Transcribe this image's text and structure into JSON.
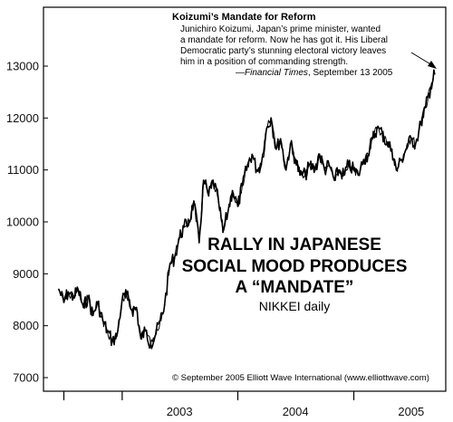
{
  "chart_data": {
    "type": "line",
    "title_lines": [
      "RALLY IN JAPANESE",
      "SOCIAL MOOD PRODUCES",
      "A “MANDATE”"
    ],
    "subtitle": "NIKKEI daily",
    "xlabel": "",
    "ylabel": "",
    "ylim": [
      7000,
      13000
    ],
    "y_ticks": [
      "7000",
      "8000",
      "9000",
      "10000",
      "11000",
      "12000",
      "13000"
    ],
    "x_tick_labels": [
      "2003",
      "2004",
      "2005"
    ],
    "grid": false,
    "series": [
      {
        "dates": [
          "2002-06-15",
          "2002-07-01",
          "2002-07-15",
          "2002-08-01",
          "2002-08-15",
          "2002-09-01",
          "2002-09-15",
          "2002-10-01",
          "2002-10-15",
          "2002-11-01",
          "2002-11-15",
          "2002-12-01",
          "2002-12-15",
          "2003-01-01",
          "2003-01-15",
          "2003-02-01",
          "2003-02-15",
          "2003-03-01",
          "2003-03-15",
          "2003-04-01",
          "2003-04-15",
          "2003-05-01",
          "2003-05-15",
          "2003-06-01",
          "2003-06-15",
          "2003-07-01",
          "2003-07-15",
          "2003-08-01",
          "2003-08-15",
          "2003-09-01",
          "2003-09-15",
          "2003-10-01",
          "2003-10-15",
          "2003-11-01",
          "2003-11-15",
          "2003-12-01",
          "2003-12-15",
          "2004-01-01",
          "2004-01-15",
          "2004-02-01",
          "2004-02-15",
          "2004-03-01",
          "2004-03-15",
          "2004-04-01",
          "2004-04-15",
          "2004-05-01",
          "2004-05-15",
          "2004-06-01",
          "2004-06-15",
          "2004-07-01",
          "2004-07-15",
          "2004-08-01",
          "2004-08-15",
          "2004-09-01",
          "2004-09-15",
          "2004-10-01",
          "2004-10-15",
          "2004-11-01",
          "2004-11-15",
          "2004-12-01",
          "2004-12-15",
          "2005-01-01",
          "2005-01-15",
          "2005-02-01",
          "2005-02-15",
          "2005-03-01",
          "2005-03-15",
          "2005-04-01",
          "2005-04-15",
          "2005-05-01",
          "2005-05-15",
          "2005-06-01",
          "2005-06-15",
          "2005-07-01",
          "2005-07-15",
          "2005-08-01",
          "2005-08-15",
          "2005-09-01",
          "2005-09-13"
        ],
        "values": [
          8700,
          8450,
          8650,
          8550,
          8700,
          8350,
          8550,
          8200,
          8450,
          8100,
          7900,
          7700,
          7800,
          8500,
          8600,
          8300,
          8350,
          7750,
          7900,
          7650,
          7800,
          8100,
          8400,
          9200,
          9300,
          9700,
          9900,
          10000,
          10400,
          9600,
          10800,
          10500,
          10800,
          10400,
          9800,
          10200,
          10600,
          10300,
          10700,
          11100,
          11300,
          11000,
          11100,
          11800,
          12000,
          11400,
          11600,
          11000,
          11500,
          11200,
          10900,
          10900,
          11100,
          11000,
          11300,
          11000,
          11100,
          10800,
          11000,
          10900,
          11100,
          11000,
          10900,
          11200,
          11300,
          11600,
          11800,
          11700,
          11500,
          11400,
          11000,
          11200,
          11400,
          11600,
          11500,
          11900,
          12200,
          12600,
          12850
        ]
      }
    ],
    "annotation": {
      "title": "Koizumi’s Mandate for Reform",
      "lines": [
        "Junichiro Koizumi, Japan’s prime minister, wanted",
        "a mandate for reform. Now he has got it. His Liberal",
        "Democratic party’s stunning electoral victory leaves",
        "him in a position of commanding strength."
      ],
      "source_dash": "—",
      "source_publication": "Financial Times",
      "source_date": ", September 13 2005"
    },
    "copyright": "© September 2005 Elliott Wave International (www.elliottwave.com)"
  }
}
